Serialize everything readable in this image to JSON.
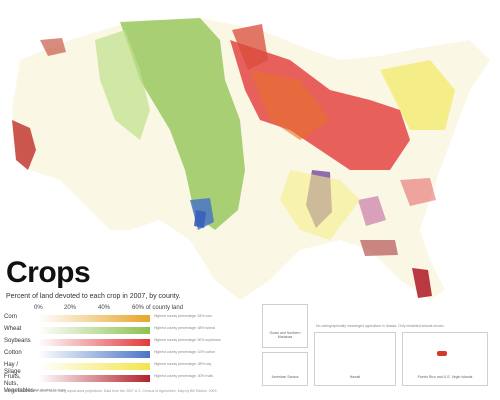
{
  "title": "Crops",
  "subtitle": "Percent of land devoted to each crop in 2007, by county.",
  "scale": {
    "ticks": [
      "0%",
      "20%",
      "40%",
      "60% of county land"
    ]
  },
  "legend": [
    {
      "name": "Corn",
      "color": "#e8a52a",
      "note": "Highest county percentage: 64% corn"
    },
    {
      "name": "Wheat",
      "color": "#8dc24f",
      "note": "Highest county percentage: 48% wheat"
    },
    {
      "name": "Soybeans",
      "color": "#e23a3a",
      "note": "Highest county percentage: 50% soybeans"
    },
    {
      "name": "Cotton",
      "color": "#4a76c6",
      "note": "Highest county percentage: 42% cotton"
    },
    {
      "name": "Hay / Silage",
      "color": "#f2e64a",
      "note": "Highest county percentage: 38% hay"
    },
    {
      "name": "Fruits, Nuts, Vegetables",
      "color": "#b2222e",
      "note": "Highest county percentage: 30% fruits"
    }
  ],
  "legend_footnote": "Percent of county land devoted to crops",
  "footer": "All maps shown at the same scale using equal-area projections. Data from the 2007 U.S. Census of Agriculture. Map by Bill Rankin, 2009.",
  "insets": [
    {
      "label": "Guam and Northern Marianas"
    },
    {
      "label": "American Samoa"
    },
    {
      "label": "Hawaii"
    },
    {
      "label": "Puerto Rico and U.S. Virgin Islands"
    }
  ],
  "alaska_note": "No cartographically meaningful agriculture in Alaska. Only inhabited islands shown.",
  "colors": {
    "corn": "#e8a52a",
    "wheat": "#8dc24f",
    "soybeans": "#e23a3a",
    "cotton": "#4a76c6",
    "hay": "#f2e64a",
    "fruits": "#b2222e",
    "mixed": "#f5e9b0"
  }
}
